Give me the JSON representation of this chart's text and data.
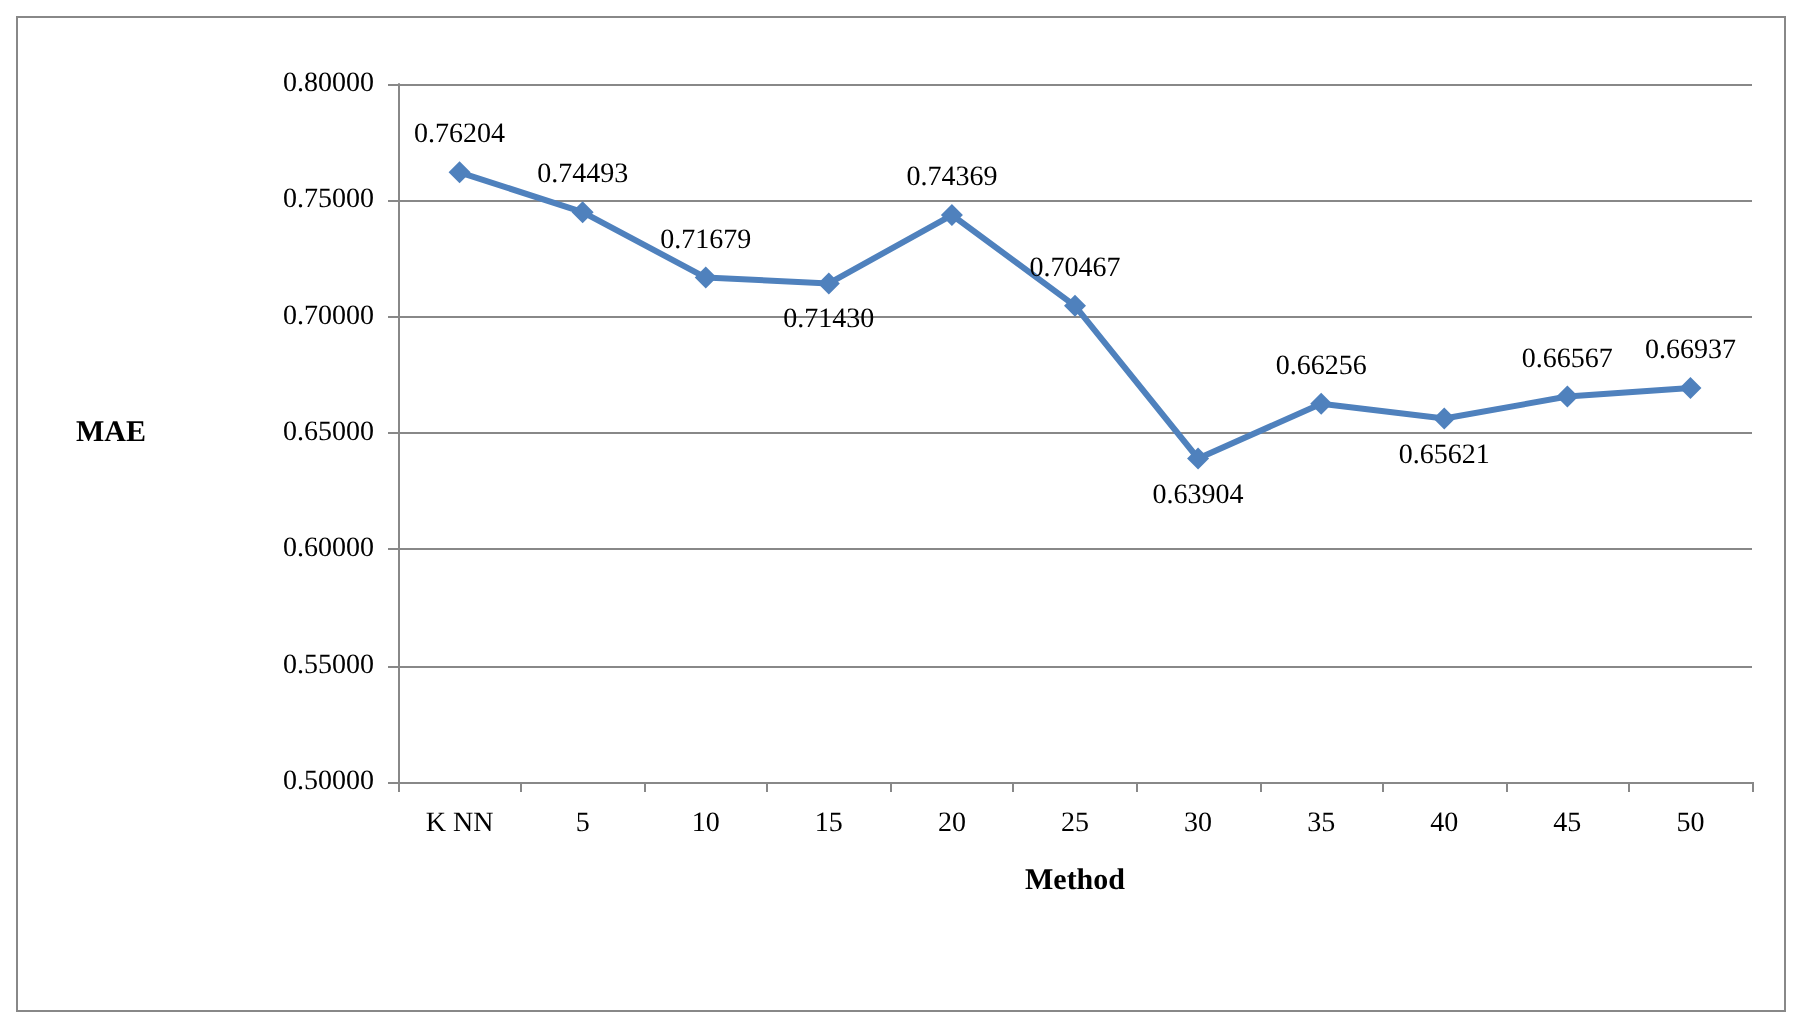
{
  "chart_data": {
    "type": "line",
    "xlabel": "Method",
    "ylabel": "MAE",
    "categories": [
      "K NN",
      "5",
      "10",
      "15",
      "20",
      "25",
      "30",
      "35",
      "40",
      "45",
      "50"
    ],
    "series": [
      {
        "color": "#4f81bd",
        "values": [
          0.76204,
          0.74493,
          0.71679,
          0.7143,
          0.74369,
          0.70467,
          0.63904,
          0.66256,
          0.65621,
          0.66567,
          0.66937
        ]
      }
    ],
    "ylim": [
      0.5,
      0.8
    ],
    "yticks": [
      {
        "value": 0.5,
        "label": "0.50000"
      },
      {
        "value": 0.55,
        "label": "0.55000"
      },
      {
        "value": 0.6,
        "label": "0.60000"
      },
      {
        "value": 0.65,
        "label": "0.65000"
      },
      {
        "value": 0.7,
        "label": "0.70000"
      },
      {
        "value": 0.75,
        "label": "0.75000"
      },
      {
        "value": 0.8,
        "label": "0.80000"
      }
    ],
    "value_labels": [
      "0.76204",
      "0.74493",
      "0.71679",
      "0.71430",
      "0.74369",
      "0.70467",
      "0.63904",
      "0.66256",
      "0.65621",
      "0.66567",
      "0.66937"
    ],
    "grid": "y",
    "marker": "diamond",
    "line_style": "solid"
  }
}
